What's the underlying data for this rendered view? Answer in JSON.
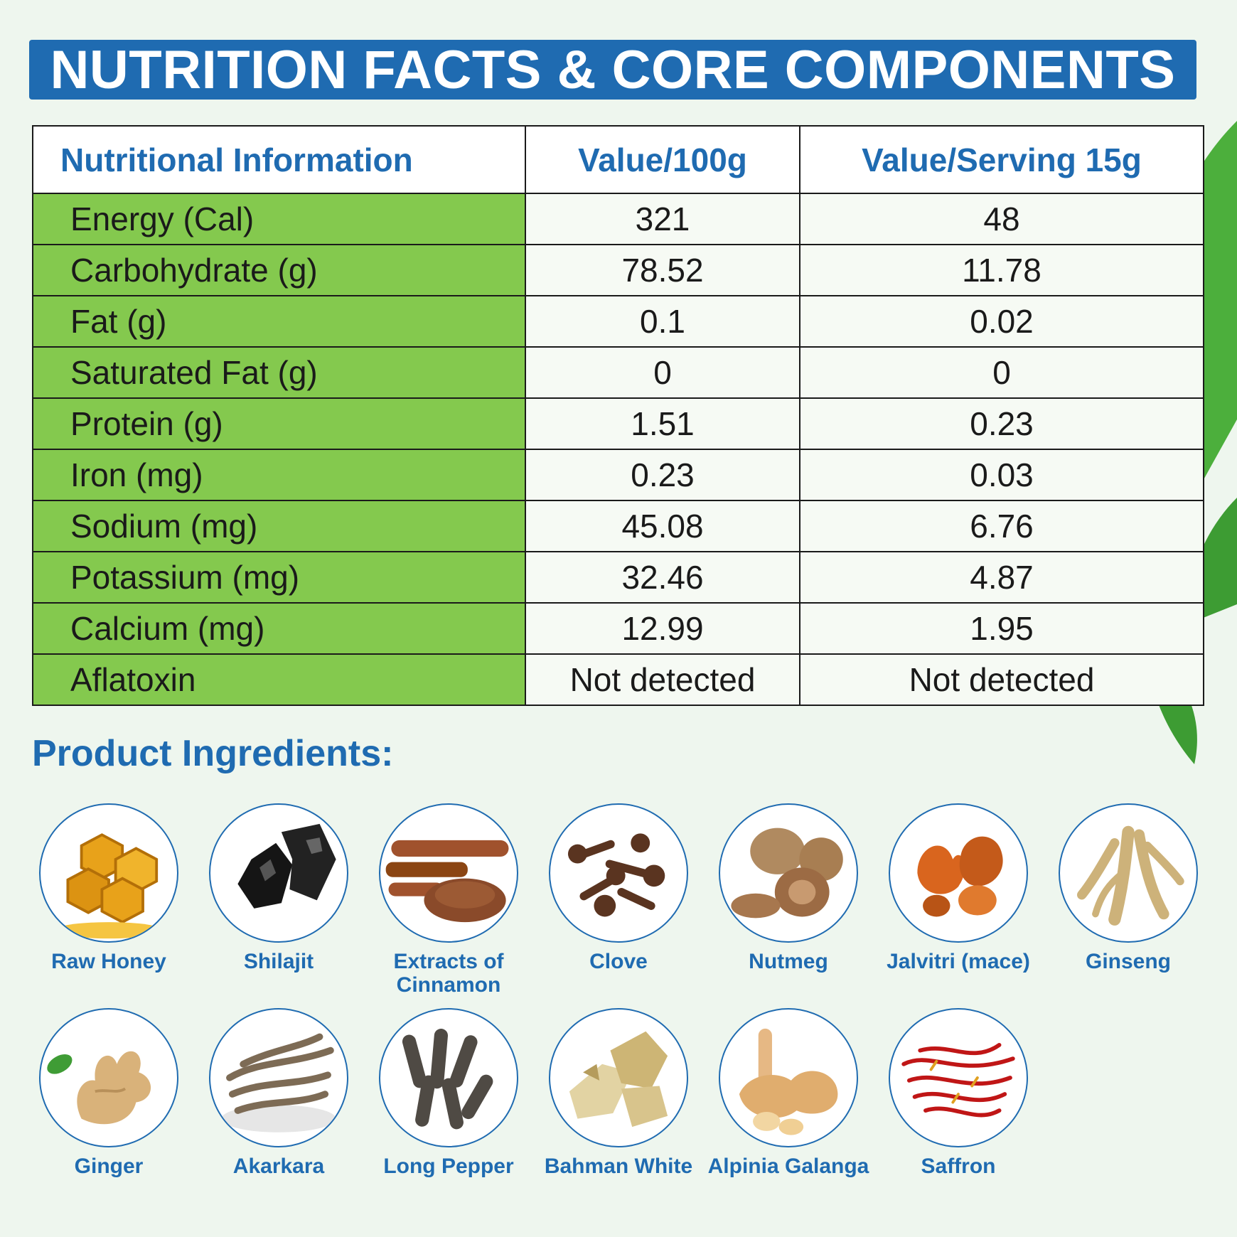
{
  "title": "NUTRITION FACTS & CORE COMPONENTS",
  "table": {
    "headers": [
      "Nutritional Information",
      "Value/100g",
      "Value/Serving 15g"
    ],
    "rows": [
      {
        "name": "Energy (Cal)",
        "per100g": "321",
        "perServing": "48"
      },
      {
        "name": "Carbohydrate (g)",
        "per100g": "78.52",
        "perServing": "11.78"
      },
      {
        "name": "Fat (g)",
        "per100g": "0.1",
        "perServing": "0.02"
      },
      {
        "name": "Saturated Fat (g)",
        "per100g": "0",
        "perServing": "0"
      },
      {
        "name": "Protein (g)",
        "per100g": "1.51",
        "perServing": "0.23"
      },
      {
        "name": "Iron (mg)",
        "per100g": "0.23",
        "perServing": "0.03"
      },
      {
        "name": "Sodium (mg)",
        "per100g": "45.08",
        "perServing": "6.76"
      },
      {
        "name": "Potassium (mg)",
        "per100g": "32.46",
        "perServing": "4.87"
      },
      {
        "name": "Calcium (mg)",
        "per100g": "12.99",
        "perServing": "1.95"
      },
      {
        "name": "Aflatoxin",
        "per100g": "Not detected",
        "perServing": "Not detected"
      }
    ]
  },
  "ingredients_heading": "Product Ingredients:",
  "ingredients": [
    {
      "label": "Raw Honey",
      "icon": "honeycomb-icon",
      "color": "#e8a21a"
    },
    {
      "label": "Shilajit",
      "icon": "shilajit-resin-icon",
      "color": "#151515"
    },
    {
      "label": "Extracts of Cinnamon",
      "icon": "cinnamon-icon",
      "color": "#a0522d"
    },
    {
      "label": "Clove",
      "icon": "clove-icon",
      "color": "#5a3420"
    },
    {
      "label": "Nutmeg",
      "icon": "nutmeg-icon",
      "color": "#a87e52"
    },
    {
      "label": "Jalvitri (mace)",
      "icon": "mace-icon",
      "color": "#d9651e"
    },
    {
      "label": "Ginseng",
      "icon": "ginseng-root-icon",
      "color": "#cdb27a"
    },
    {
      "label": "Ginger",
      "icon": "ginger-root-icon",
      "color": "#d9b27a"
    },
    {
      "label": "Akarkara",
      "icon": "akarkara-root-icon",
      "color": "#7d6b55"
    },
    {
      "label": "Long Pepper",
      "icon": "long-pepper-icon",
      "color": "#4f4a44"
    },
    {
      "label": "Bahman White",
      "icon": "bahman-white-root-icon",
      "color": "#d8c48c"
    },
    {
      "label": "Alpinia Galanga",
      "icon": "galangal-root-icon",
      "color": "#e0ad6e"
    },
    {
      "label": "Saffron",
      "icon": "saffron-icon",
      "color": "#c01616"
    }
  ],
  "colors": {
    "brand_blue": "#1f6bb1",
    "name_column_green": "#84c94e",
    "leaf_green": "#4caf3c"
  }
}
